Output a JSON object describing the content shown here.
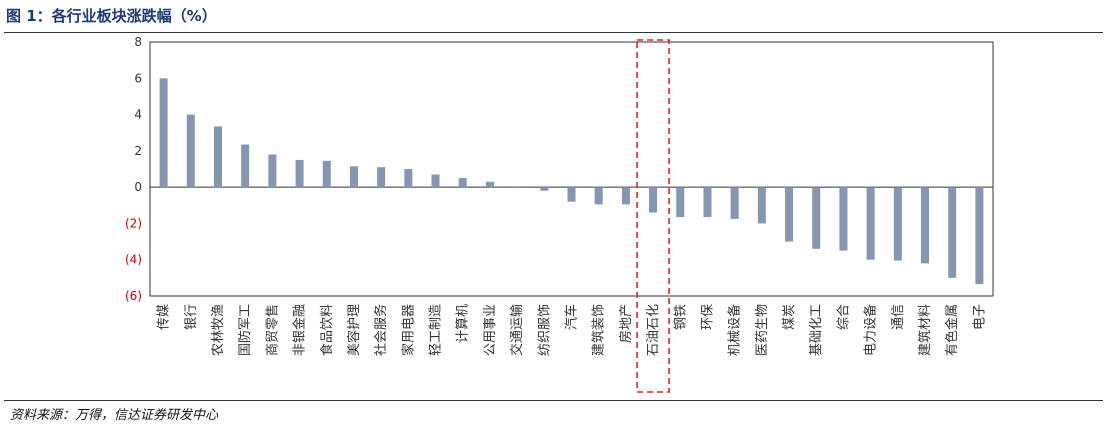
{
  "header": {
    "title": "图 1：各行业板块涨跌幅（%）"
  },
  "footer": {
    "source": "资料来源：万得，信达证券研发中心"
  },
  "colors": {
    "bar": "#8496b0",
    "highlight_box": "#e02020",
    "negative_tick": "#cc0000",
    "axis": "#333333"
  },
  "chart_data": {
    "type": "bar",
    "title": "各行业板块涨跌幅（%）",
    "ylim": [
      -6,
      8
    ],
    "yticks": [
      8,
      6,
      4,
      2,
      0,
      -2,
      -4,
      -6
    ],
    "ytick_labels": [
      "8",
      "6",
      "4",
      "2",
      "0",
      "(2)",
      "(4)",
      "(6)"
    ],
    "grid": false,
    "legend": "none",
    "highlight_category": "石油石化",
    "categories": [
      "传媒",
      "银行",
      "农林牧渔",
      "国防军工",
      "商贸零售",
      "非银金融",
      "食品饮料",
      "美容护理",
      "社会服务",
      "家用电器",
      "轻工制造",
      "计算机",
      "公用事业",
      "交通运输",
      "纺织服饰",
      "汽车",
      "建筑装饰",
      "房地产",
      "石油石化",
      "钢铁",
      "环保",
      "机械设备",
      "医药生物",
      "煤炭",
      "基础化工",
      "综合",
      "电力设备",
      "通信",
      "建筑材料",
      "有色金属",
      "电子"
    ],
    "values": [
      6.0,
      4.0,
      3.35,
      2.35,
      1.8,
      1.5,
      1.45,
      1.15,
      1.1,
      1.0,
      0.7,
      0.5,
      0.3,
      0.05,
      -0.2,
      -0.8,
      -0.95,
      -0.95,
      -1.4,
      -1.65,
      -1.65,
      -1.75,
      -2.0,
      -3.0,
      -3.4,
      -3.5,
      -4.0,
      -4.05,
      -4.2,
      -5.0,
      -5.35
    ]
  }
}
